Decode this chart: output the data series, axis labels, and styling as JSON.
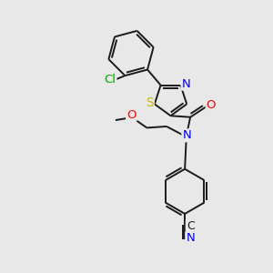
{
  "background_color": "#e8e8e8",
  "bond_color": "#1a1a1a",
  "atom_colors": {
    "N": "#0000ff",
    "O": "#ff0000",
    "S": "#ccbb00",
    "Cl": "#00aa00",
    "C": "#1a1a1a"
  },
  "lw": 1.4,
  "fs": 9.5,
  "xlim": [
    0,
    10
  ],
  "ylim": [
    0,
    10
  ]
}
